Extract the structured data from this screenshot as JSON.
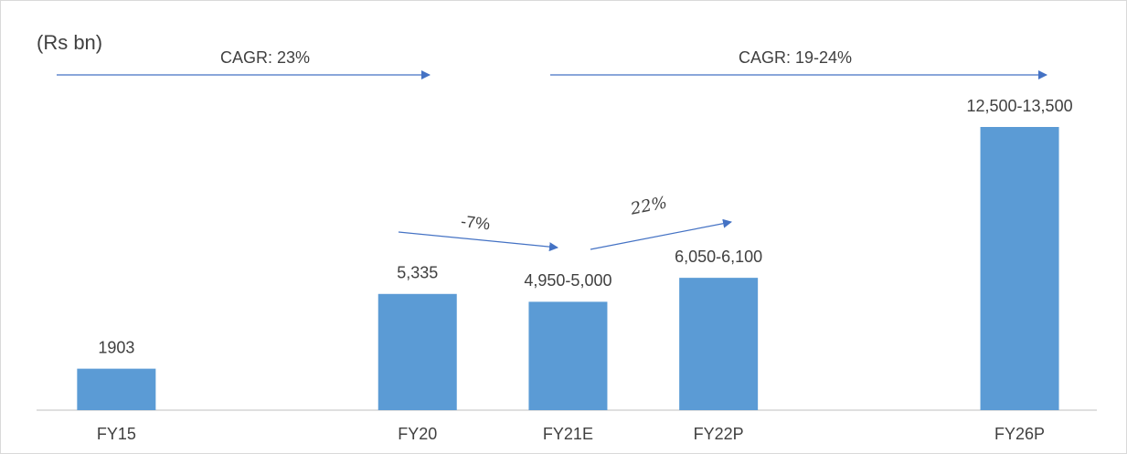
{
  "chart_data": {
    "type": "bar",
    "categories": [
      "FY15",
      null,
      "FY20",
      "FY21E",
      "FY22P",
      null,
      "FY26P"
    ],
    "values": [
      1903,
      null,
      5335,
      4975,
      6075,
      null,
      13000
    ],
    "value_labels": [
      "1903",
      null,
      "5,335",
      "4,950-5,000",
      "6,050-6,100",
      null,
      "12,500-13,500"
    ],
    "color": "#5b9bd5",
    "annotations": [
      "(Rs bn)",
      "CAGR: 23%",
      "CAGR: 19-24%",
      "-7%",
      "22%"
    ]
  }
}
